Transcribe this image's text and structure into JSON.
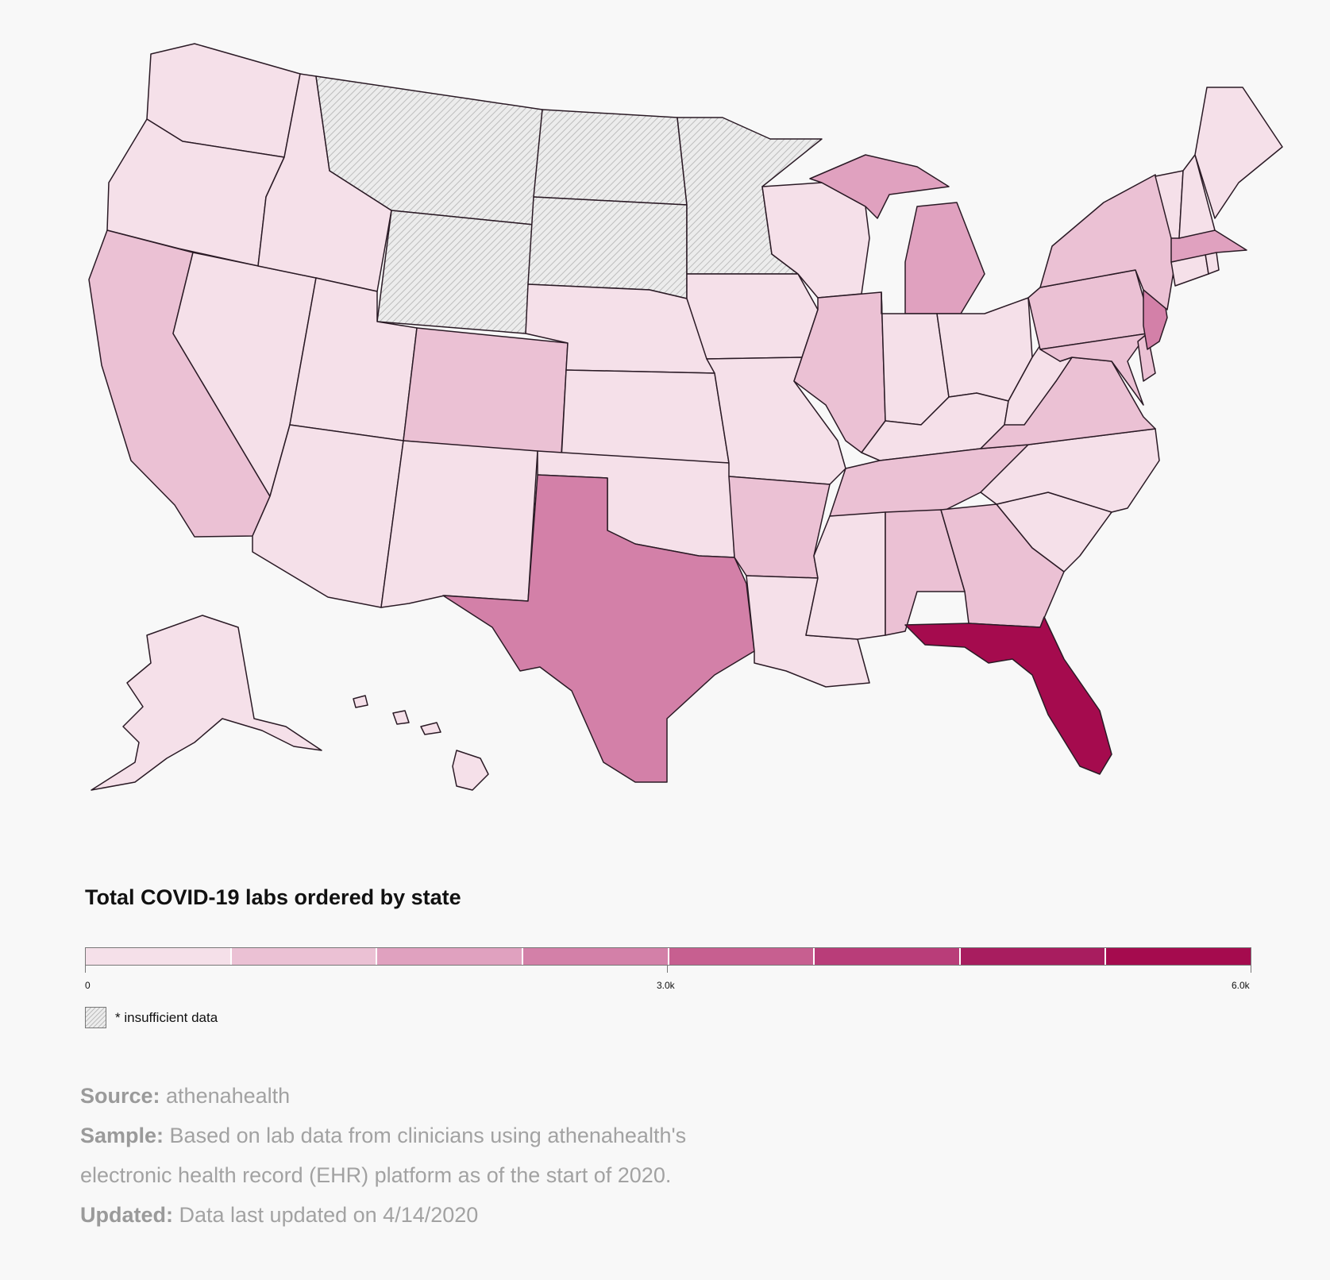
{
  "title": "Total COVID-19 labs ordered by state",
  "scale": {
    "min_label": "0",
    "mid_label": "3.0k",
    "max_label": "6.0k",
    "min_value": 0,
    "max_value": 6000,
    "bins": [
      "#f5e0e9",
      "#ebc1d4",
      "#e0a1bf",
      "#d380a8",
      "#c75f90",
      "#b93d79",
      "#a81d5f",
      "#a50b4e"
    ]
  },
  "insufficient_label": "* insufficient data",
  "colors": {
    "stroke": "#2a1a25",
    "background": "#f8f8f8",
    "insufficient_hatch": "#bdbdbd"
  },
  "states": {
    "WA": 0,
    "OR": 0,
    "CA": 1,
    "NV": 0,
    "ID": 0,
    "UT": 0,
    "AZ": 0,
    "NM": 0,
    "CO": 1,
    "MT": "insufficient",
    "WY": "insufficient",
    "ND": "insufficient",
    "SD": "insufficient",
    "MN": "insufficient",
    "NE": 0,
    "KS": 0,
    "OK": 0,
    "TX": 3,
    "IA": 0,
    "MO": 0,
    "AR": 1,
    "LA": 0,
    "WI": 0,
    "IL": 1,
    "MI": 2,
    "IN": 0,
    "OH": 0,
    "KY": 0,
    "TN": 1,
    "MS": 0,
    "AL": 1,
    "GA": 1,
    "FL": 7,
    "SC": 0,
    "NC": 0,
    "VA": 1,
    "WV": 0,
    "PA": 1,
    "NY": 1,
    "VT": 0,
    "NH": 0,
    "ME": 0,
    "MA": 2,
    "CT": 0,
    "RI": 0,
    "NJ": 3,
    "DE": 1,
    "MD": 1,
    "AK": 0,
    "HI": 0
  },
  "footnotes": {
    "source_label": "Source:",
    "source_text": " athenahealth",
    "sample_label": "Sample:",
    "sample_text": " Based on lab data from clinicians using athenahealth's electronic health record (EHR) platform as of the start of 2020.",
    "updated_label": "Updated:",
    "updated_text": " Data last updated on 4/14/2020"
  }
}
